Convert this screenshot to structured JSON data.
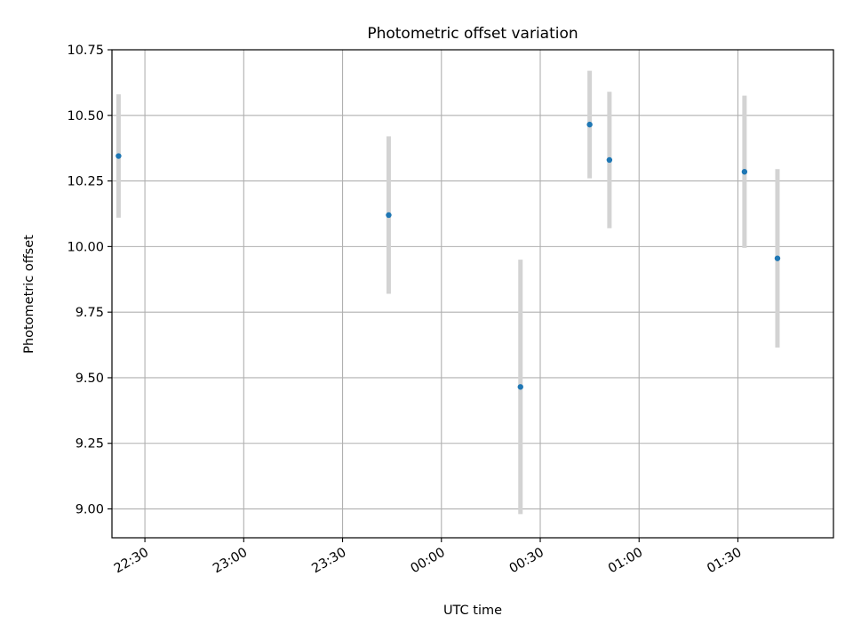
{
  "chart_data": {
    "type": "scatter",
    "title": "Photometric offset variation",
    "xlabel": "UTC time",
    "ylabel": "Photometric offset",
    "x_ticks": [
      "22:30",
      "23:00",
      "23:30",
      "00:00",
      "00:30",
      "01:00",
      "01:30"
    ],
    "y_ticks": [
      "9.00",
      "9.25",
      "9.50",
      "9.75",
      "10.00",
      "10.25",
      "10.50",
      "10.75"
    ],
    "xlim": [
      "22:20",
      "01:59"
    ],
    "ylim": [
      8.89,
      10.75
    ],
    "grid": true,
    "points": [
      {
        "x": "22:22",
        "y": 10.345,
        "err": 0.235
      },
      {
        "x": "23:44",
        "y": 10.12,
        "err": 0.3
      },
      {
        "x": "00:24",
        "y": 9.465,
        "err": 0.485
      },
      {
        "x": "00:45",
        "y": 10.465,
        "err": 0.205
      },
      {
        "x": "00:51",
        "y": 10.33,
        "err": 0.26
      },
      {
        "x": "01:32",
        "y": 10.285,
        "err": 0.29
      },
      {
        "x": "01:42",
        "y": 9.955,
        "err": 0.34
      }
    ],
    "colors": {
      "point": "#1f77b4",
      "errorbar": "#d3d3d3",
      "grid": "#b0b0b0"
    }
  }
}
